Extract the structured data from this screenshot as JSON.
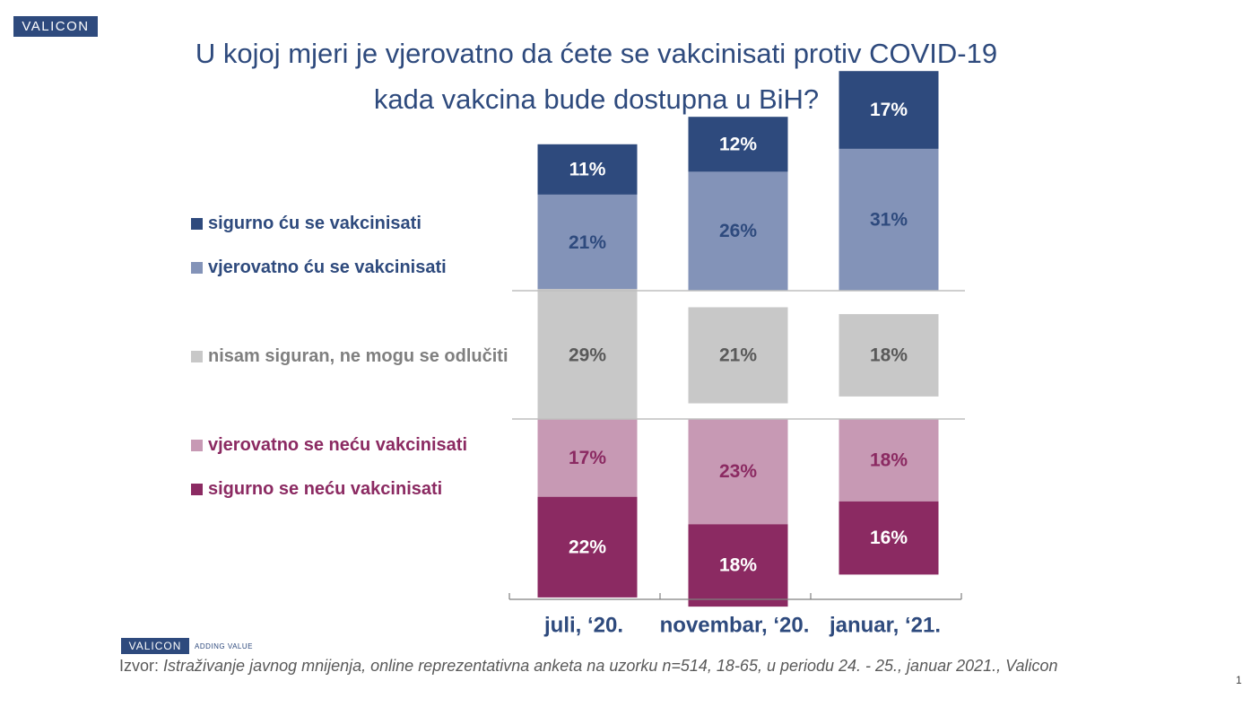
{
  "brand": {
    "logo_text": "VALICON",
    "tagline": "ADDING VALUE"
  },
  "title": {
    "line1": "U kojoj mjeri je vjerovatno da ćete se vakcinisati protiv COVID-19",
    "line2": "kada vakcina bude dostupna u BiH?"
  },
  "colors": {
    "title": "#2e4a7d",
    "sigurno_cu": "#2e4a7d",
    "vjerovatno_cu": "#8393b8",
    "nisam_siguran": "#c8c8c8",
    "vjerovatno_necu": "#c799b4",
    "sigurno_necu": "#8b2a62",
    "axis": "#bfbfbf"
  },
  "chart_data": {
    "type": "bar",
    "subtype": "diverging-stacked",
    "categories": [
      "juli, ‘20.",
      "novembar, ‘20.",
      "januar, ‘21."
    ],
    "series": [
      {
        "name": "sigurno ću se vakcinisati",
        "group": "positive",
        "values": [
          11,
          12,
          17
        ],
        "color": "#2e4a7d",
        "label_color": "#ffffff"
      },
      {
        "name": "vjerovatno ću se vakcinisati",
        "group": "positive",
        "values": [
          21,
          26,
          31
        ],
        "color": "#8393b8",
        "label_color": "#2e4a7d"
      },
      {
        "name": "nisam siguran, ne mogu se odlučiti",
        "group": "neutral",
        "values": [
          29,
          21,
          18
        ],
        "color": "#c8c8c8",
        "label_color": "#595959"
      },
      {
        "name": "vjerovatno se neću vakcinisati",
        "group": "negative",
        "values": [
          17,
          23,
          18
        ],
        "color": "#c799b4",
        "label_color": "#8b2a62"
      },
      {
        "name": "sigurno se neću vakcinisati",
        "group": "negative",
        "values": [
          22,
          18,
          16
        ],
        "color": "#8b2a62",
        "label_color": "#ffffff"
      }
    ],
    "unit": "%",
    "legend_position": "left"
  },
  "source": {
    "prefix": "Izvor:",
    "text": "Istraživanje javnog mnijenja, online reprezentativna anketa na uzorku n=514, 18-65, u periodu 24. - 25., januar 2021., Valicon"
  },
  "page_number": "1"
}
